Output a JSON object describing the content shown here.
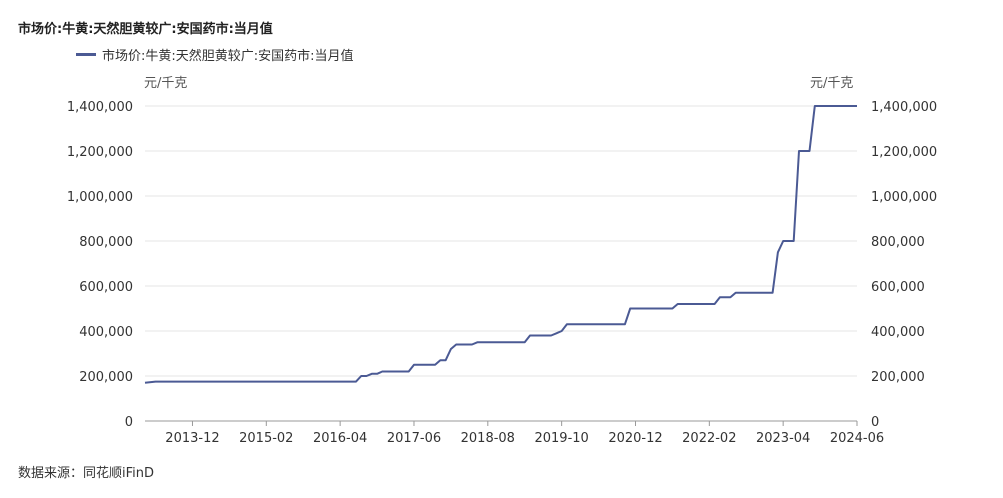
{
  "chart_data": {
    "type": "line",
    "title": "市场价:牛黄:天然胆黄较广:安国药市:当月值",
    "legend": "市场价:牛黄:天然胆黄较广:安国药市:当月值",
    "y_unit_left": "元/千克",
    "y_unit_right": "元/千克",
    "ylim": [
      0,
      1400000
    ],
    "y_ticks": [
      "0",
      "200,000",
      "400,000",
      "600,000",
      "800,000",
      "1,000,000",
      "1,200,000",
      "1,400,000"
    ],
    "x_ticks": [
      "2013-12",
      "2015-02",
      "2016-04",
      "2017-06",
      "2018-08",
      "2019-10",
      "2020-12",
      "2022-02",
      "2023-04",
      "2024-06"
    ],
    "series": [
      {
        "name": "市场价:牛黄:天然胆黄较广:安国药市:当月值",
        "color": "#4b5a94",
        "points": [
          [
            "2013-03",
            170000
          ],
          [
            "2013-05",
            175000
          ],
          [
            "2016-07",
            175000
          ],
          [
            "2016-08",
            200000
          ],
          [
            "2016-09",
            200000
          ],
          [
            "2016-10",
            210000
          ],
          [
            "2016-11",
            210000
          ],
          [
            "2016-12",
            220000
          ],
          [
            "2017-05",
            220000
          ],
          [
            "2017-06",
            250000
          ],
          [
            "2017-10",
            250000
          ],
          [
            "2017-11",
            270000
          ],
          [
            "2017-12",
            270000
          ],
          [
            "2018-01",
            320000
          ],
          [
            "2018-02",
            340000
          ],
          [
            "2018-05",
            340000
          ],
          [
            "2018-06",
            350000
          ],
          [
            "2019-03",
            350000
          ],
          [
            "2019-04",
            380000
          ],
          [
            "2019-08",
            380000
          ],
          [
            "2019-09",
            390000
          ],
          [
            "2019-10",
            400000
          ],
          [
            "2019-11",
            430000
          ],
          [
            "2020-10",
            430000
          ],
          [
            "2020-11",
            500000
          ],
          [
            "2021-07",
            500000
          ],
          [
            "2021-08",
            520000
          ],
          [
            "2022-03",
            520000
          ],
          [
            "2022-04",
            550000
          ],
          [
            "2022-06",
            550000
          ],
          [
            "2022-07",
            570000
          ],
          [
            "2023-02",
            570000
          ],
          [
            "2023-03",
            750000
          ],
          [
            "2023-04",
            800000
          ],
          [
            "2023-06",
            800000
          ],
          [
            "2023-07",
            1200000
          ],
          [
            "2023-09",
            1200000
          ],
          [
            "2023-10",
            1400000
          ],
          [
            "2024-06",
            1400000
          ]
        ]
      }
    ],
    "grid": true,
    "legend_position": "top-left"
  },
  "footer": {
    "source": "数据来源：同花顺iFinD"
  }
}
